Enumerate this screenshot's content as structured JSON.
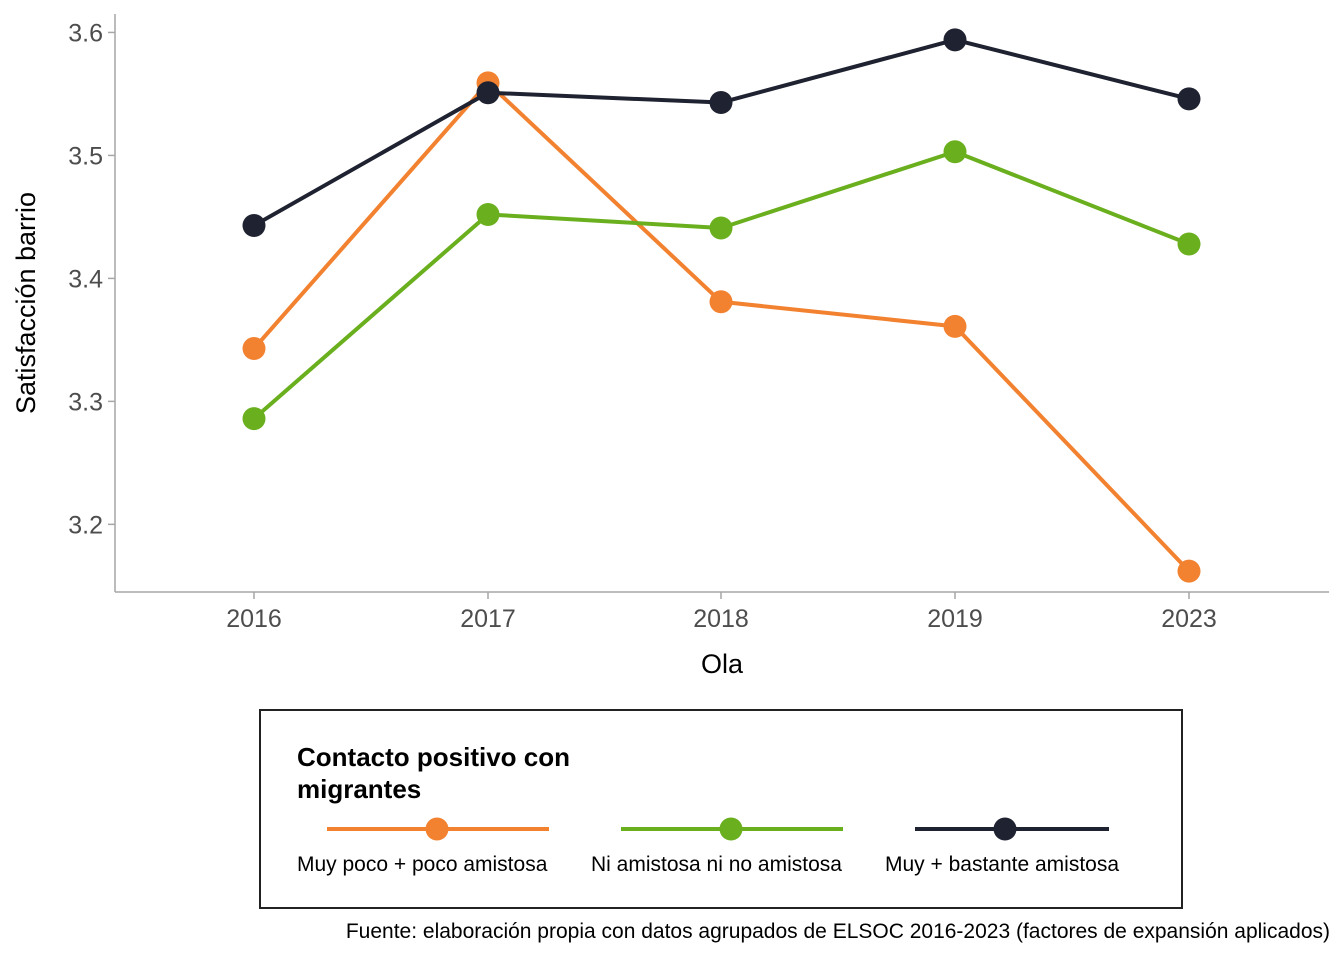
{
  "chart_data": {
    "type": "line",
    "title": "",
    "xlabel": "Ola",
    "ylabel": "Satisfacción barrio",
    "categories": [
      "2016",
      "2017",
      "2018",
      "2019",
      "2023"
    ],
    "ylim": [
      3.145,
      3.615
    ],
    "yticks": [
      3.2,
      3.3,
      3.4,
      3.5,
      3.6
    ],
    "ytick_labels": [
      "3.2",
      "3.3",
      "3.4",
      "3.5",
      "3.6"
    ],
    "grid": false,
    "legend_position": "bottom",
    "legend_title": "Contacto positivo con migrantes",
    "series": [
      {
        "name": "Muy poco + poco amistosa",
        "color": "#F28230",
        "values": [
          3.343,
          3.559,
          3.381,
          3.361,
          3.162
        ]
      },
      {
        "name": "Ni amistosa ni no amistosa",
        "color": "#6AAF1E",
        "values": [
          3.286,
          3.452,
          3.441,
          3.503,
          3.428
        ]
      },
      {
        "name": "Muy + bastante amistosa",
        "color": "#1F2230",
        "values": [
          3.443,
          3.551,
          3.543,
          3.594,
          3.546
        ]
      }
    ]
  },
  "caption": "Fuente: elaboración propia con datos agrupados de ELSOC 2016-2023 (factores de expansión aplicados)"
}
